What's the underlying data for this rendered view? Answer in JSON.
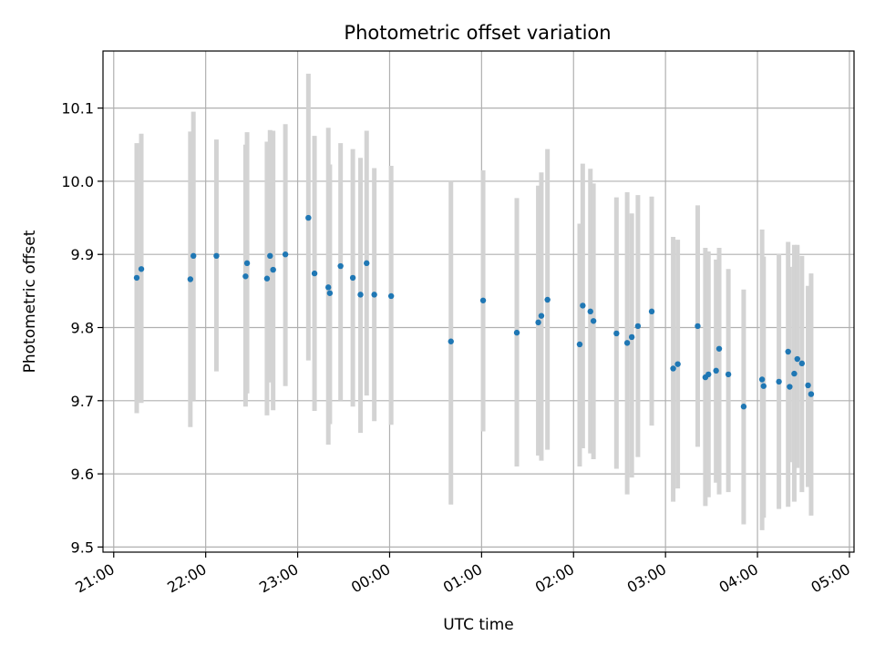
{
  "chart_data": {
    "type": "scatter",
    "title": "Photometric offset variation",
    "xlabel": "UTC time",
    "ylabel": "Photometric offset",
    "x_is_time": true,
    "xlim": [
      "20:53",
      "05:03"
    ],
    "ylim": [
      9.493,
      10.178
    ],
    "x_ticks": [
      "21:00",
      "22:00",
      "23:00",
      "00:00",
      "01:00",
      "02:00",
      "03:00",
      "04:00",
      "05:00"
    ],
    "y_ticks": [
      9.5,
      9.6,
      9.7,
      9.8,
      9.9,
      10.0,
      10.1
    ],
    "y_tick_labels": [
      "9.5",
      "9.6",
      "9.7",
      "9.8",
      "9.9",
      "10.0",
      "10.1"
    ],
    "grid": true,
    "colors": {
      "points": "#1f77b4",
      "error_bars": "#d3d3d3",
      "grid": "#b0b0b0"
    },
    "series": [
      {
        "x": [
          "21:15",
          "21:18",
          "21:50",
          "21:52",
          "22:07",
          "22:26",
          "22:27",
          "22:40",
          "22:42",
          "22:44",
          "22:52",
          "23:07",
          "23:11",
          "23:20",
          "23:21",
          "23:28",
          "23:36",
          "23:41",
          "23:45",
          "23:50",
          "24:01",
          "00:40",
          "01:01",
          "01:23",
          "01:37",
          "01:39",
          "01:43",
          "02:04",
          "02:06",
          "02:11",
          "02:13",
          "02:28",
          "02:35",
          "02:38",
          "02:42",
          "02:51",
          "03:05",
          "03:08",
          "03:21",
          "03:26",
          "03:28",
          "03:33",
          "03:35",
          "03:41",
          "03:51",
          "04:03",
          "04:04",
          "04:14",
          "04:20",
          "04:21",
          "04:24",
          "04:26",
          "04:29",
          "04:33",
          "04:35"
        ],
        "y": [
          9.868,
          9.88,
          9.866,
          9.898,
          9.898,
          9.87,
          9.888,
          9.867,
          9.898,
          9.879,
          9.9,
          9.95,
          9.874,
          9.855,
          9.847,
          9.884,
          9.868,
          9.845,
          9.888,
          9.845,
          9.843,
          9.781,
          9.837,
          9.793,
          9.807,
          9.816,
          9.838,
          9.777,
          9.83,
          9.822,
          9.809,
          9.792,
          9.779,
          9.787,
          9.802,
          9.822,
          9.744,
          9.75,
          9.802,
          9.732,
          9.736,
          9.741,
          9.771,
          9.736,
          9.692,
          9.729,
          9.72,
          9.726,
          9.767,
          9.719,
          9.737,
          9.757,
          9.751,
          9.721,
          9.709
        ],
        "err_low": [
          9.683,
          9.697,
          9.664,
          9.7,
          9.74,
          9.692,
          9.71,
          9.68,
          9.725,
          9.687,
          9.72,
          9.755,
          9.686,
          9.64,
          9.668,
          9.7,
          9.692,
          9.656,
          9.707,
          9.672,
          9.667,
          9.558,
          9.658,
          9.61,
          9.625,
          9.618,
          9.633,
          9.61,
          9.635,
          9.628,
          9.62,
          9.607,
          9.572,
          9.595,
          9.623,
          9.666,
          9.562,
          9.58,
          9.637,
          9.556,
          9.568,
          9.588,
          9.572,
          9.575,
          9.531,
          9.523,
          9.54,
          9.552,
          9.555,
          9.616,
          9.562,
          9.608,
          9.575,
          9.582,
          9.543
        ],
        "err_high": [
          10.052,
          10.065,
          10.068,
          10.095,
          10.057,
          10.05,
          10.067,
          10.054,
          10.07,
          10.069,
          10.078,
          10.147,
          10.062,
          10.073,
          10.023,
          10.052,
          10.044,
          10.032,
          10.069,
          10.018,
          10.021,
          10.0,
          10.015,
          9.977,
          9.994,
          10.012,
          10.044,
          9.942,
          10.024,
          10.017,
          9.997,
          9.978,
          9.985,
          9.956,
          9.981,
          9.979,
          9.924,
          9.92,
          9.967,
          9.909,
          9.904,
          9.893,
          9.909,
          9.88,
          9.852,
          9.934,
          9.897,
          9.901,
          9.917,
          9.883,
          9.913,
          9.913,
          9.898,
          9.857,
          9.874
        ]
      }
    ]
  }
}
